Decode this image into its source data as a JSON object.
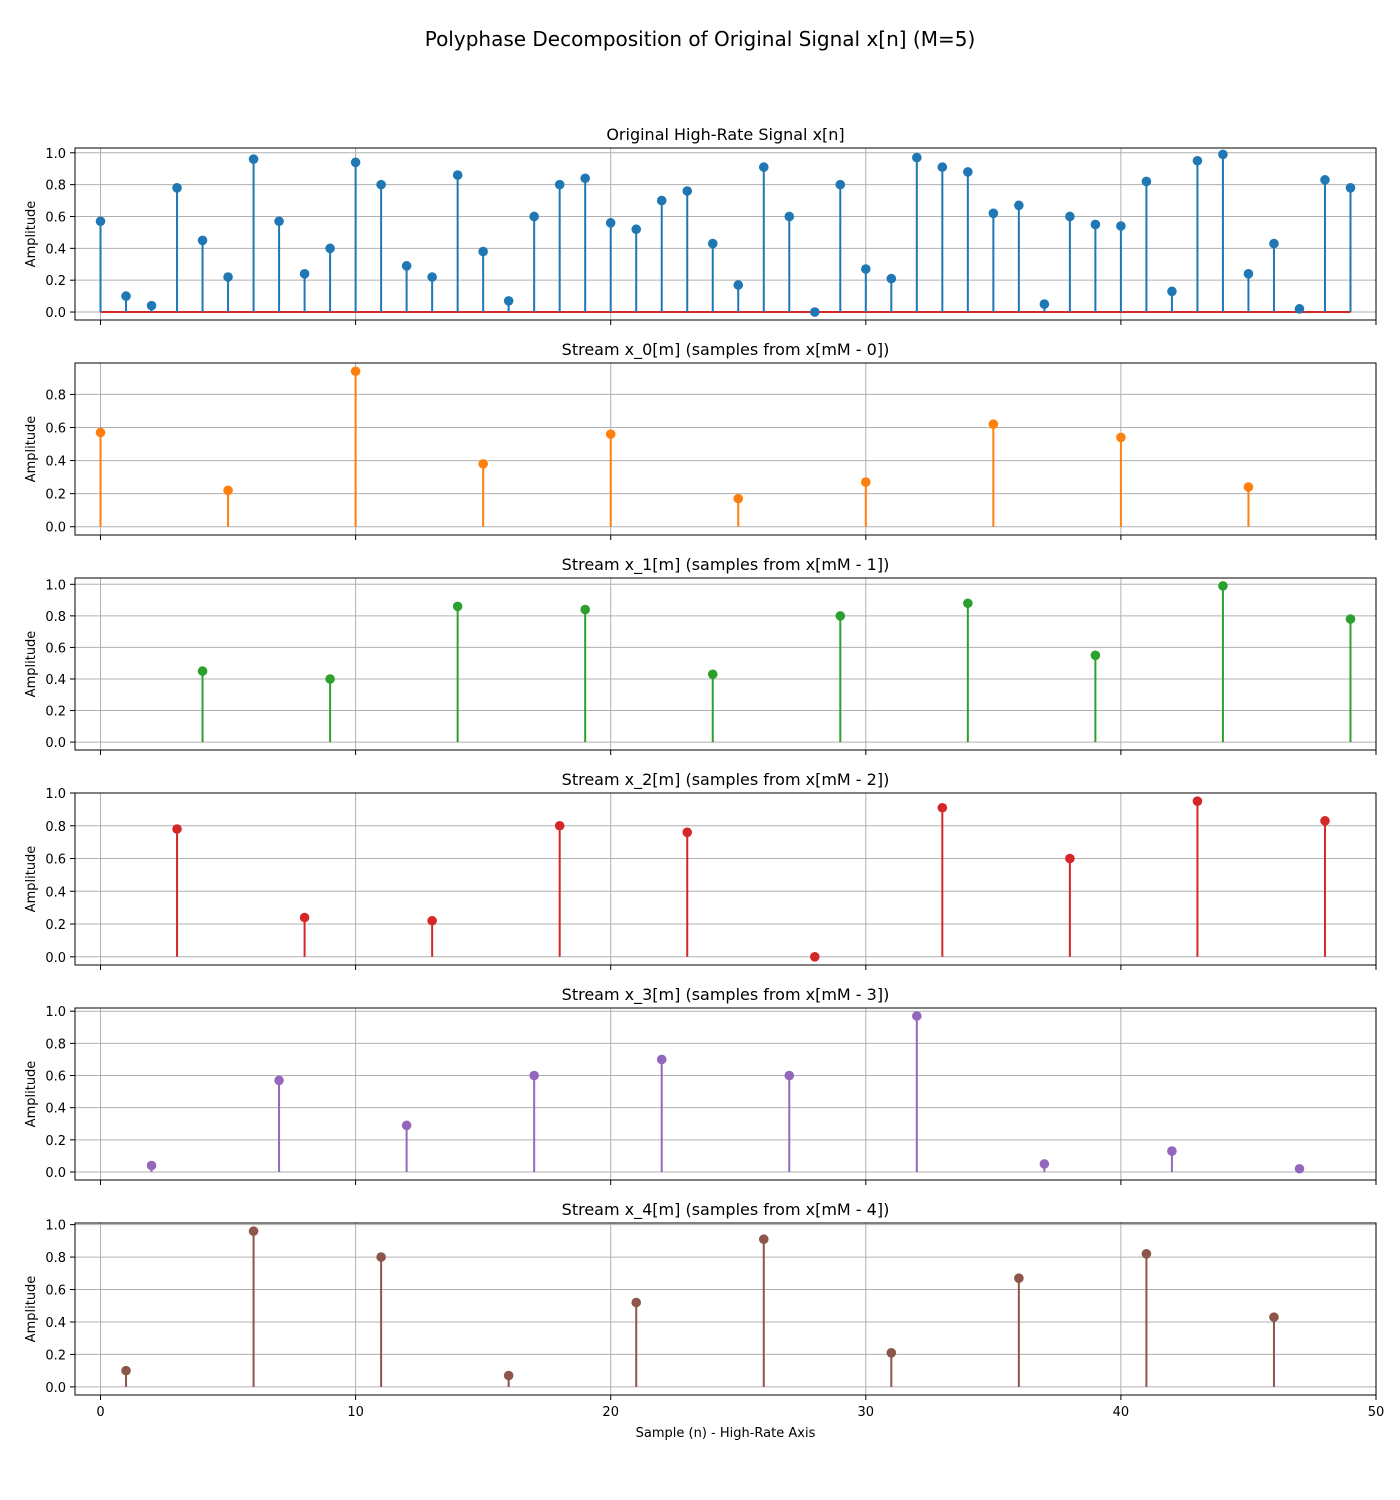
{
  "figure_title": "Polyphase Decomposition of Original Signal x[n] (M=5)",
  "colors": {
    "original": "#1f77b4",
    "baseline": "#d62728",
    "stream_0": "#ff7f0e",
    "stream_1": "#2ca02c",
    "stream_2": "#d62728",
    "stream_3": "#9467bd",
    "stream_4": "#8c564b"
  },
  "chart_data": [
    {
      "type": "stem",
      "title": "Original High-Rate Signal x[n]",
      "ylabel": "Amplitude",
      "xlabel": "",
      "color": "#1f77b4",
      "baseline": true,
      "baseline_color": "#d62728",
      "xlim": [
        -1,
        50
      ],
      "ylim": [
        -0.05,
        1.03
      ],
      "yticks": [
        0.0,
        0.2,
        0.4,
        0.6,
        0.8,
        1.0
      ],
      "ytick_labels": [
        "0.0",
        "0.2",
        "0.4",
        "0.6",
        "0.8",
        "1.0"
      ],
      "grid": true,
      "x": [
        0,
        1,
        2,
        3,
        4,
        5,
        6,
        7,
        8,
        9,
        10,
        11,
        12,
        13,
        14,
        15,
        16,
        17,
        18,
        19,
        20,
        21,
        22,
        23,
        24,
        25,
        26,
        27,
        28,
        29,
        30,
        31,
        32,
        33,
        34,
        35,
        36,
        37,
        38,
        39,
        40,
        41,
        42,
        43,
        44,
        45,
        46,
        47,
        48,
        49
      ],
      "y": [
        0.57,
        0.1,
        0.04,
        0.78,
        0.45,
        0.22,
        0.96,
        0.57,
        0.24,
        0.4,
        0.94,
        0.8,
        0.29,
        0.22,
        0.86,
        0.38,
        0.07,
        0.6,
        0.8,
        0.84,
        0.56,
        0.52,
        0.7,
        0.76,
        0.43,
        0.17,
        0.91,
        0.6,
        0.0,
        0.8,
        0.27,
        0.21,
        0.97,
        0.91,
        0.88,
        0.62,
        0.67,
        0.05,
        0.6,
        0.55,
        0.54,
        0.82,
        0.13,
        0.95,
        0.99,
        0.24,
        0.43,
        0.02,
        0.83,
        0.78
      ]
    },
    {
      "type": "stem",
      "title": "Stream x_0[m] (samples from x[mM - 0])",
      "ylabel": "Amplitude",
      "xlabel": "",
      "color": "#ff7f0e",
      "xlim": [
        -1,
        50
      ],
      "ylim": [
        -0.05,
        0.99
      ],
      "yticks": [
        0.0,
        0.2,
        0.4,
        0.6,
        0.8
      ],
      "ytick_labels": [
        "0.0",
        "0.2",
        "0.4",
        "0.6",
        "0.8"
      ],
      "grid": true,
      "x": [
        0,
        5,
        10,
        15,
        20,
        25,
        30,
        35,
        40,
        45
      ],
      "y": [
        0.57,
        0.22,
        0.94,
        0.38,
        0.56,
        0.17,
        0.27,
        0.62,
        0.54,
        0.24
      ]
    },
    {
      "type": "stem",
      "title": "Stream x_1[m] (samples from x[mM - 1])",
      "ylabel": "Amplitude",
      "xlabel": "",
      "color": "#2ca02c",
      "xlim": [
        -1,
        50
      ],
      "ylim": [
        -0.05,
        1.04
      ],
      "yticks": [
        0.0,
        0.2,
        0.4,
        0.6,
        0.8,
        1.0
      ],
      "ytick_labels": [
        "0.0",
        "0.2",
        "0.4",
        "0.6",
        "0.8",
        "1.0"
      ],
      "grid": true,
      "x": [
        4,
        9,
        14,
        19,
        24,
        29,
        34,
        39,
        44,
        49
      ],
      "y": [
        0.45,
        0.4,
        0.86,
        0.84,
        0.43,
        0.8,
        0.88,
        0.55,
        0.99,
        0.78
      ]
    },
    {
      "type": "stem",
      "title": "Stream x_2[m] (samples from x[mM - 2])",
      "ylabel": "Amplitude",
      "xlabel": "",
      "color": "#d62728",
      "xlim": [
        -1,
        50
      ],
      "ylim": [
        -0.05,
        1.0
      ],
      "yticks": [
        0.0,
        0.2,
        0.4,
        0.6,
        0.8,
        1.0
      ],
      "ytick_labels": [
        "0.0",
        "0.2",
        "0.4",
        "0.6",
        "0.8",
        "1.0"
      ],
      "grid": true,
      "x": [
        3,
        8,
        13,
        18,
        23,
        28,
        33,
        38,
        43,
        48
      ],
      "y": [
        0.78,
        0.24,
        0.22,
        0.8,
        0.76,
        0.0,
        0.91,
        0.6,
        0.95,
        0.83
      ]
    },
    {
      "type": "stem",
      "title": "Stream x_3[m] (samples from x[mM - 3])",
      "ylabel": "Amplitude",
      "xlabel": "",
      "color": "#9467bd",
      "xlim": [
        -1,
        50
      ],
      "ylim": [
        -0.05,
        1.02
      ],
      "yticks": [
        0.0,
        0.2,
        0.4,
        0.6,
        0.8,
        1.0
      ],
      "ytick_labels": [
        "0.0",
        "0.2",
        "0.4",
        "0.6",
        "0.8",
        "1.0"
      ],
      "grid": true,
      "x": [
        2,
        7,
        12,
        17,
        22,
        27,
        32,
        37,
        42,
        47
      ],
      "y": [
        0.04,
        0.57,
        0.29,
        0.6,
        0.7,
        0.6,
        0.97,
        0.05,
        0.13,
        0.02
      ]
    },
    {
      "type": "stem",
      "title": "Stream x_4[m] (samples from x[mM - 4])",
      "ylabel": "Amplitude",
      "xlabel": "Sample (n) - High-Rate Axis",
      "color": "#8c564b",
      "xlim": [
        -1,
        50
      ],
      "ylim": [
        -0.05,
        1.01
      ],
      "yticks": [
        0.0,
        0.2,
        0.4,
        0.6,
        0.8,
        1.0
      ],
      "ytick_labels": [
        "0.0",
        "0.2",
        "0.4",
        "0.6",
        "0.8",
        "1.0"
      ],
      "grid": true,
      "x": [
        1,
        6,
        11,
        16,
        21,
        26,
        31,
        36,
        41,
        46
      ],
      "y": [
        0.1,
        0.96,
        0.8,
        0.07,
        0.52,
        0.91,
        0.21,
        0.67,
        0.82,
        0.43
      ]
    }
  ],
  "xticks": [
    0,
    10,
    20,
    30,
    40,
    50
  ],
  "xtick_labels": [
    "0",
    "10",
    "20",
    "30",
    "40",
    "50"
  ]
}
